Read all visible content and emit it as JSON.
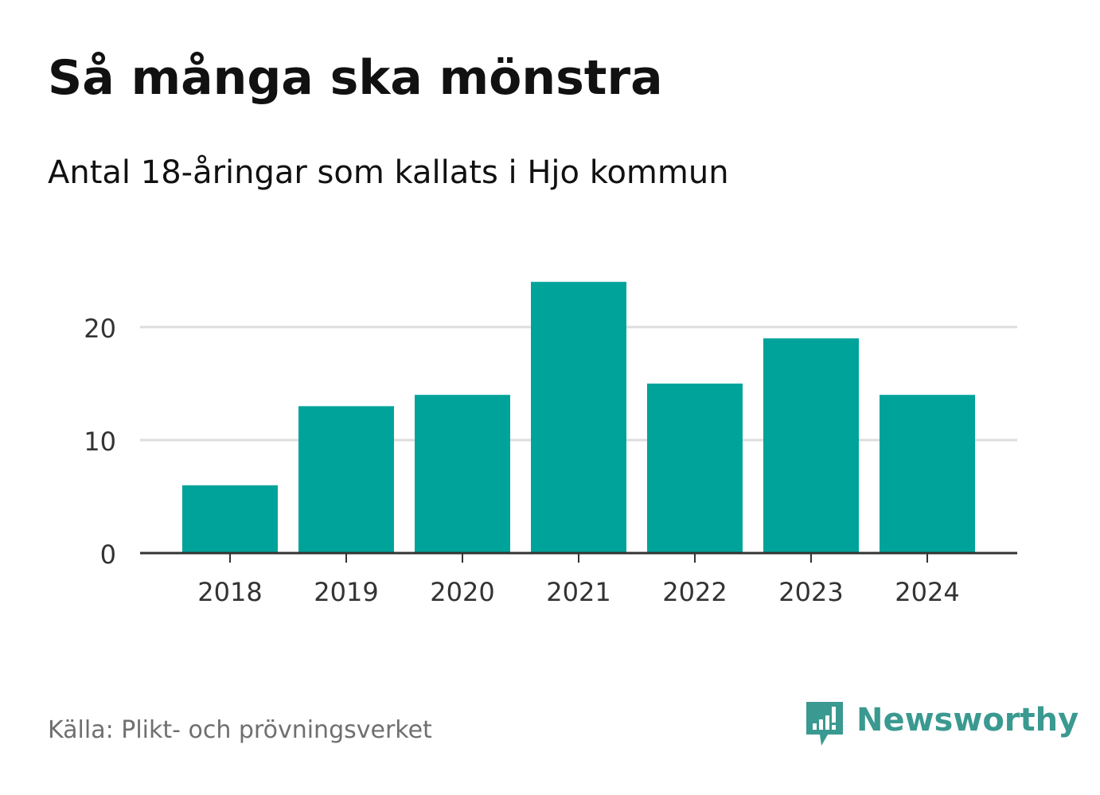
{
  "header": {
    "title": "Så många ska mönstra",
    "subtitle": "Antal 18-åringar som kallats i Hjo kommun"
  },
  "footer": {
    "source": "Källa: Plikt- och prövningsverket",
    "brand": "Newsworthy",
    "brand_icon": "newsworthy-logo-icon"
  },
  "colors": {
    "bar": "#00a39a",
    "grid": "#dddddd",
    "axis": "#333333",
    "brand": "#3a9990"
  },
  "chart_data": {
    "type": "bar",
    "title": "Så många ska mönstra",
    "subtitle": "Antal 18-åringar som kallats i Hjo kommun",
    "xlabel": "",
    "ylabel": "",
    "categories": [
      "2018",
      "2019",
      "2020",
      "2021",
      "2022",
      "2023",
      "2024"
    ],
    "values": [
      6,
      13,
      14,
      24,
      15,
      19,
      14
    ],
    "ylim": [
      0,
      26
    ],
    "yticks": [
      0,
      10,
      20
    ],
    "grid": true,
    "legend": "none"
  }
}
